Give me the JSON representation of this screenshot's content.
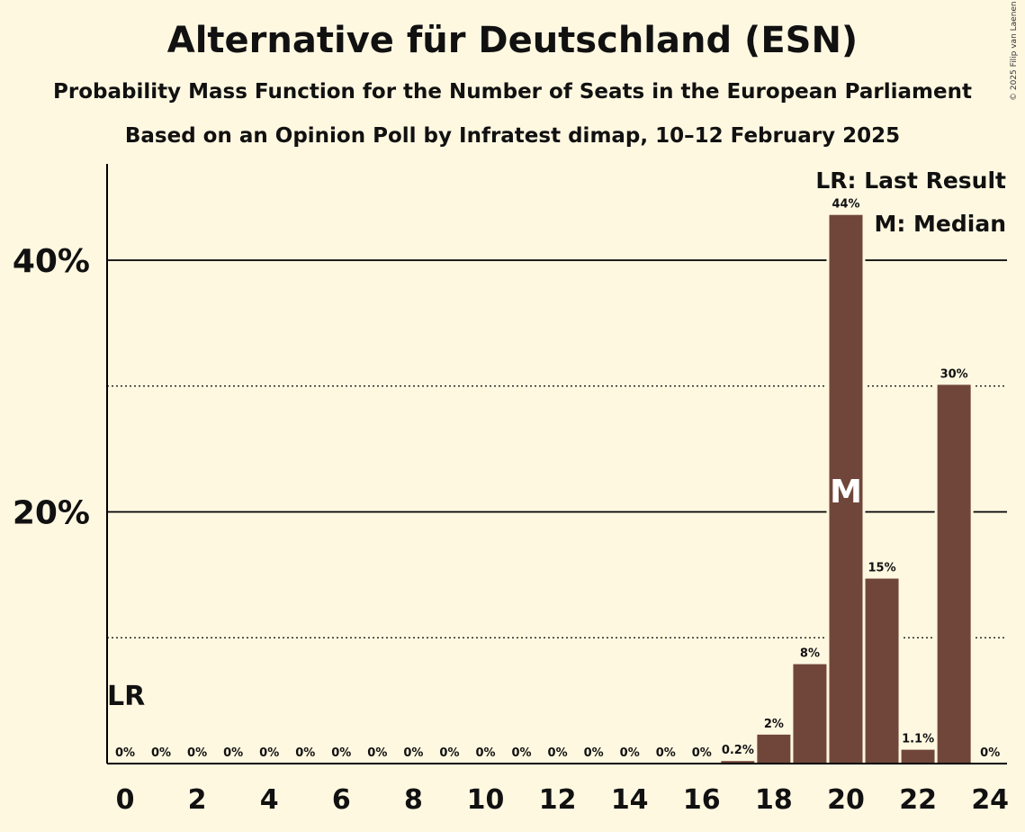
{
  "header": {
    "title": "Alternative für Deutschland (ESN)",
    "subtitle": "Probability Mass Function for the Number of Seats in the European Parliament",
    "subtitle2": "Based on an Opinion Poll by Infratest dimap, 10–12 February 2025"
  },
  "copyright": "© 2025 Filip van Laenen",
  "chart_data": {
    "type": "bar",
    "categories": [
      "0",
      "1",
      "2",
      "3",
      "4",
      "5",
      "6",
      "7",
      "8",
      "9",
      "10",
      "11",
      "12",
      "13",
      "14",
      "15",
      "16",
      "17",
      "18",
      "19",
      "20",
      "21",
      "22",
      "23",
      "24"
    ],
    "values": [
      0,
      0,
      0,
      0,
      0,
      0,
      0,
      0,
      0,
      0,
      0,
      0,
      0,
      0,
      0,
      0,
      0,
      0.2,
      2.3,
      7.9,
      43.6,
      14.7,
      1.1,
      30.1,
      0
    ],
    "value_labels": [
      "0%",
      "0%",
      "0%",
      "0%",
      "0%",
      "0%",
      "0%",
      "0%",
      "0%",
      "0%",
      "0%",
      "0%",
      "0%",
      "0%",
      "0%",
      "0%",
      "0%",
      "0.2%",
      "2%",
      "8%",
      "44%",
      "15%",
      "1.1%",
      "30%",
      "0%"
    ],
    "x_tick_labels": [
      "0",
      "2",
      "4",
      "6",
      "8",
      "10",
      "12",
      "14",
      "16",
      "18",
      "20",
      "22",
      "24"
    ],
    "y_tick_labels": [
      "20%",
      "40%"
    ],
    "y_ticks": [
      20,
      40
    ],
    "y_minor_gridlines": [
      10,
      30
    ],
    "ylim": [
      0,
      47.6
    ],
    "last_result_seat": 0,
    "last_result_marker": "LR",
    "median_seat": 20,
    "median_marker": "M",
    "legend": [
      "LR: Last Result",
      "M: Median"
    ],
    "legend_position": "top-right",
    "colors": {
      "bar": "#70463b",
      "background": "#fff8e1",
      "median_text": "#ffffff",
      "axis": "#000000"
    }
  }
}
